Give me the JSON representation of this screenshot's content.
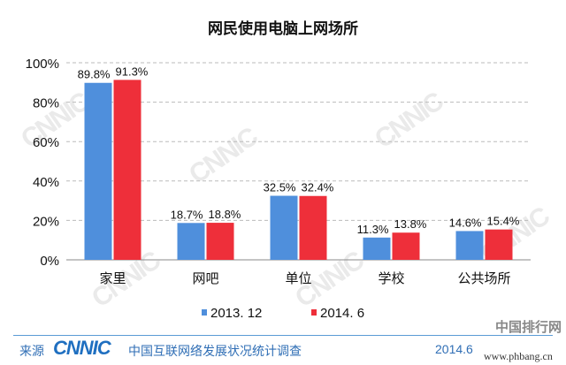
{
  "chart_data": {
    "type": "bar",
    "title": "网民使用电脑上网场所",
    "categories": [
      "家里",
      "网吧",
      "单位",
      "学校",
      "公共场所"
    ],
    "series": [
      {
        "name": "2013. 12",
        "values": [
          89.8,
          18.7,
          32.5,
          11.3,
          14.6
        ],
        "color": "#4f8fdc"
      },
      {
        "name": "2014. 6",
        "values": [
          91.3,
          18.8,
          32.4,
          13.8,
          15.4
        ],
        "color": "#ee2f3a"
      }
    ],
    "ylim": [
      0,
      100
    ],
    "yticks": [
      "0%",
      "20%",
      "40%",
      "60%",
      "80%",
      "100%"
    ],
    "grid": true,
    "legend": "bottom",
    "value_suffix": "%"
  },
  "footer": {
    "source_label": "来源",
    "logo": "CNNIC",
    "survey": "中国互联网络发展状况统计调查",
    "date": "2014.6",
    "site_name": "中国排行网",
    "site_url": "www.phbang.cn"
  }
}
